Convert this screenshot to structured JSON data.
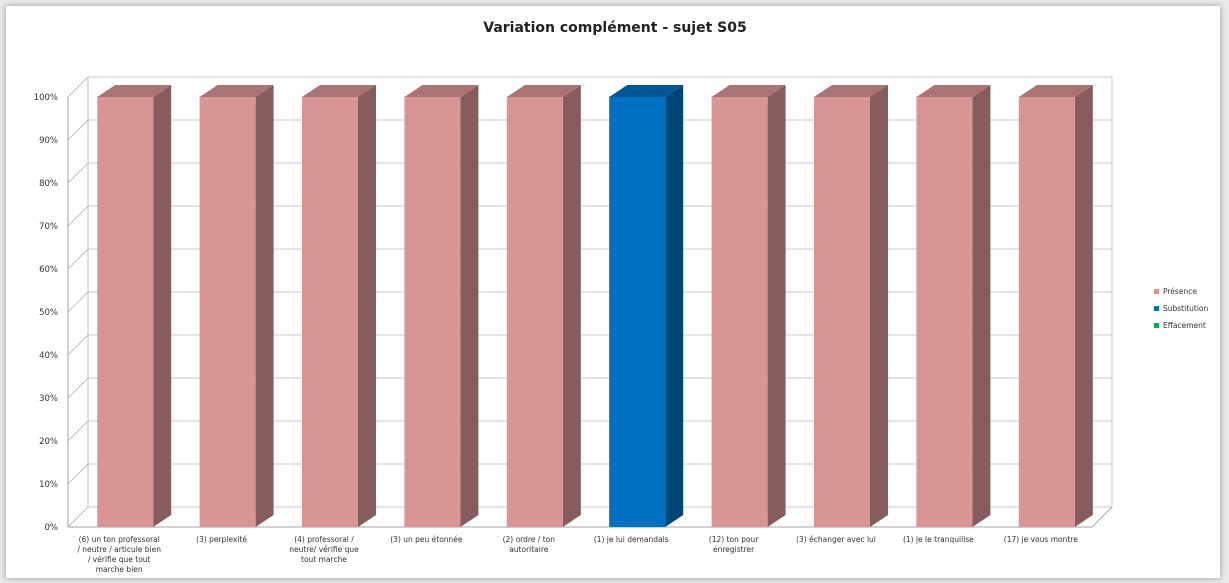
{
  "chart_data": {
    "type": "bar",
    "title": "Variation complément - sujet S05",
    "xlabel": "",
    "ylabel": "",
    "ylim": [
      0,
      100
    ],
    "yticks": [
      "0%",
      "10%",
      "20%",
      "30%",
      "40%",
      "50%",
      "60%",
      "70%",
      "80%",
      "90%",
      "100%"
    ],
    "grid": true,
    "legend_position": "right",
    "categories": [
      [
        "(6) un ton professoral",
        "/ neutre / articule bien",
        "/ vérifie que tout",
        "marche bien"
      ],
      [
        "(3) perplexité"
      ],
      [
        "(4) professoral /",
        "neutre/ vérifie que",
        "tout marche"
      ],
      [
        "(3) un peu étonnée"
      ],
      [
        "(2) ordre / ton",
        "autoritaire"
      ],
      [
        "(1) je lui demandais"
      ],
      [
        "(12) ton pour",
        "enregistrer"
      ],
      [
        "(3) échanger avec lui"
      ],
      [
        "(1) je le tranquilise"
      ],
      [
        "(17) je vous montre"
      ]
    ],
    "series": [
      {
        "name": "Présence",
        "color": "#d99594",
        "values": [
          100,
          100,
          100,
          100,
          100,
          0,
          100,
          100,
          100,
          100
        ]
      },
      {
        "name": "Substitution",
        "color": "#0070c0",
        "values": [
          0,
          0,
          0,
          0,
          0,
          100,
          0,
          0,
          0,
          0
        ]
      },
      {
        "name": "Effacement",
        "color": "#00b050",
        "values": [
          0,
          0,
          0,
          0,
          0,
          0,
          0,
          0,
          0,
          0
        ]
      }
    ]
  }
}
